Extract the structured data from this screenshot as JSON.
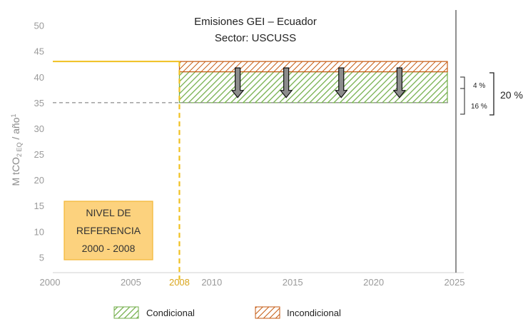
{
  "chart_data": {
    "type": "area",
    "title": "Emisiones GEI – Ecuador",
    "subtitle": "Sector: USCUSS",
    "ylabel": "M tCO",
    "ylabel_sub": "2 EQ",
    "ylabel_unit": "/ año",
    "ylabel_sup": "1",
    "xlim": [
      2000,
      2025
    ],
    "ylim": [
      2,
      53
    ],
    "x_ticks": [
      "2000",
      "2005",
      "2008",
      "2010",
      "2015",
      "2020",
      "2025"
    ],
    "y_ticks": [
      "5",
      "10",
      "15",
      "20",
      "25",
      "30",
      "35",
      "40",
      "45",
      "50"
    ],
    "highlight_tick": "2008",
    "reference_level": 43,
    "reference_year": 2008,
    "baseline": 35,
    "series": [
      {
        "name": "Condicional",
        "start_year": 2008,
        "end_year": 2025,
        "from": 35,
        "to": 41,
        "color": "#70ad47"
      },
      {
        "name": "Incondicional",
        "start_year": 2008,
        "end_year": 2025,
        "from": 41,
        "to": 43,
        "color": "#c55a11"
      }
    ],
    "arrows_x": [
      2011.6,
      2014.6,
      2018.0,
      2021.6
    ],
    "annotations": {
      "incondicional_pct": "4 %",
      "condicional_pct": "16 %",
      "total_pct": "20 %"
    },
    "reference_box": {
      "line1": "NIVEL DE",
      "line2": "REFERENCIA",
      "line3": "2000 - 2008",
      "fill": "#fcd27e",
      "border": "#f2b632"
    },
    "line_color": "#f0c020",
    "dash_color": "#8c8c8c"
  }
}
